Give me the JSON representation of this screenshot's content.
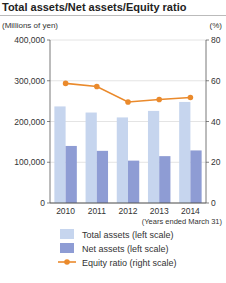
{
  "chart_data": {
    "type": "bar",
    "title": "Total assets/Net assets/Equity ratio",
    "y_label": "(Millions of yen)",
    "y2_label": "(%)",
    "x_label": "(Years ended March 31)",
    "categories": [
      "2010",
      "2011",
      "2012",
      "2013",
      "2014"
    ],
    "series": [
      {
        "name": "Total assets (left scale)",
        "color": "#c6d5ee",
        "values": [
          237000,
          222000,
          210000,
          226000,
          248000
        ]
      },
      {
        "name": "Net assets (left scale)",
        "color": "#8e9cd4",
        "values": [
          140000,
          128000,
          104000,
          115000,
          129000
        ]
      },
      {
        "name": "Equity ratio (right scale)",
        "type": "line",
        "axis": "y2",
        "color": "#ea8a2c",
        "marker": "circle",
        "values": [
          58.7,
          57.2,
          49.6,
          50.8,
          51.8
        ]
      }
    ],
    "ylim": [
      0,
      400000
    ],
    "yticks": [
      0,
      {
        "value": 100000,
        "label": "100,000"
      },
      {
        "value": 200000,
        "label": "200,000"
      },
      {
        "value": 300000,
        "label": "300,000"
      },
      {
        "value": 400000,
        "label": "400,000"
      }
    ],
    "y2lim": [
      0,
      80
    ],
    "y2ticks": [
      0,
      20,
      40,
      60,
      80
    ],
    "grid": true,
    "legend": "bottom"
  }
}
